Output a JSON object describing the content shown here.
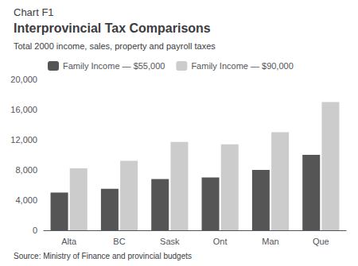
{
  "chart_data": {
    "type": "bar",
    "title": "Interprovincial Tax Comparisons",
    "subtitle": "Total 2000 income, sales, property and payroll taxes",
    "annotations": [
      "Chart F1",
      "Source: Ministry of Finance and provincial budgets"
    ],
    "categories": [
      "Alta",
      "BC",
      "Sask",
      "Ont",
      "Man",
      "Que"
    ],
    "series": [
      {
        "name": "Family Income — $55,000",
        "color": "#555555",
        "values": [
          5000,
          5500,
          6800,
          7000,
          8000,
          10000
        ]
      },
      {
        "name": "Family Income — $90,000",
        "color": "#cccccc",
        "values": [
          8200,
          9200,
          11700,
          11400,
          13000,
          17000
        ]
      }
    ],
    "ylim": [
      0,
      20000
    ],
    "yticks": [
      0,
      {
        "value": 4000,
        "label": "4,000"
      },
      {
        "value": 8000,
        "label": "8,000"
      },
      {
        "value": 12000,
        "label": "12,000"
      },
      {
        "value": 16000,
        "label": "16,000"
      },
      {
        "value": 20000,
        "label": "20,000"
      }
    ],
    "grid": false,
    "legend": "upper left"
  }
}
